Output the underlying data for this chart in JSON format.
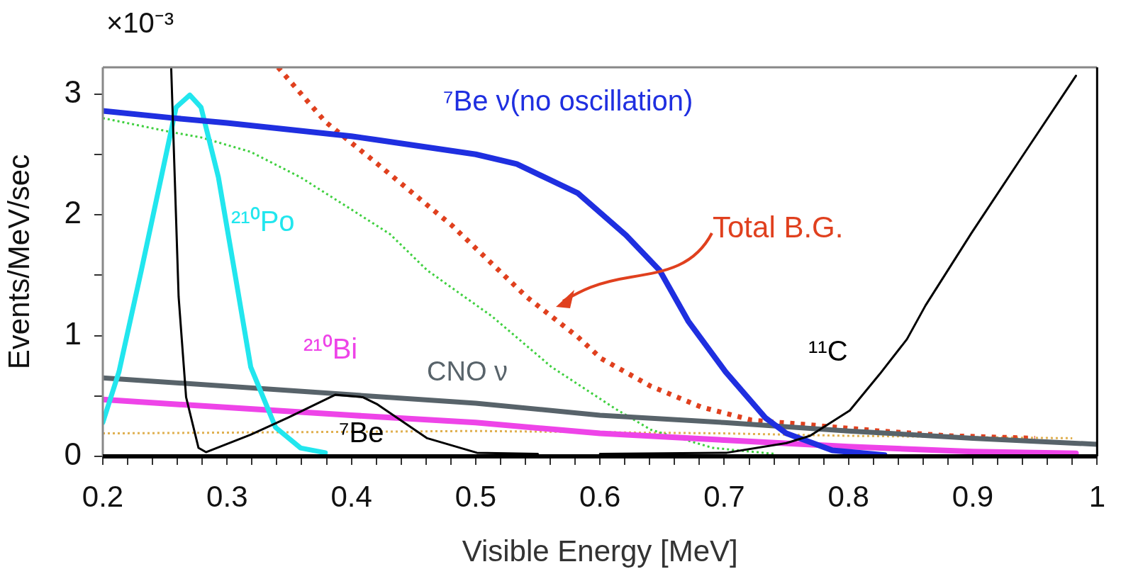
{
  "chart_data": {
    "type": "line",
    "xlabel": "Visible Energy [MeV]",
    "ylabel": "Events/MeV/sec",
    "annotations": [
      "×10⁻³"
    ],
    "xlim": [
      0.2,
      1.0
    ],
    "ylim": [
      0,
      3.22
    ],
    "xticks": [
      0.2,
      {
        "value": 0.22,
        "label": null
      },
      {
        "value": 0.24,
        "label": null
      },
      {
        "value": 0.26,
        "label": null
      },
      {
        "value": 0.28,
        "label": null
      },
      0.3,
      {
        "value": 0.32,
        "label": null
      },
      {
        "value": 0.34,
        "label": null
      },
      {
        "value": 0.36,
        "label": null
      },
      {
        "value": 0.38,
        "label": null
      },
      0.4,
      {
        "value": 0.42,
        "label": null
      },
      {
        "value": 0.44,
        "label": null
      },
      {
        "value": 0.46,
        "label": null
      },
      {
        "value": 0.48,
        "label": null
      },
      0.5,
      {
        "value": 0.52,
        "label": null
      },
      {
        "value": 0.54,
        "label": null
      },
      {
        "value": 0.56,
        "label": null
      },
      {
        "value": 0.58,
        "label": null
      },
      0.6,
      {
        "value": 0.62,
        "label": null
      },
      {
        "value": 0.64,
        "label": null
      },
      {
        "value": 0.66,
        "label": null
      },
      {
        "value": 0.68,
        "label": null
      },
      0.7,
      {
        "value": 0.72,
        "label": null
      },
      {
        "value": 0.74,
        "label": null
      },
      {
        "value": 0.76,
        "label": null
      },
      {
        "value": 0.78,
        "label": null
      },
      0.8,
      {
        "value": 0.82,
        "label": null
      },
      {
        "value": 0.84,
        "label": null
      },
      {
        "value": 0.86,
        "label": null
      },
      {
        "value": 0.88,
        "label": null
      },
      0.9,
      {
        "value": 0.92,
        "label": null
      },
      {
        "value": 0.94,
        "label": null
      },
      {
        "value": 0.96,
        "label": null
      },
      {
        "value": 0.98,
        "label": null
      },
      1
    ],
    "yticks": [
      0,
      {
        "value": 0.5,
        "label": null
      },
      1,
      {
        "value": 1.5,
        "label": null
      },
      2,
      {
        "value": 2.5,
        "label": null
      },
      3
    ],
    "marker": "none",
    "legend": false,
    "series": [
      {
        "name": "⁷Be ν(no oscillation)",
        "color": "#1f2fe0",
        "x": [
          0.2,
          0.257,
          0.3,
          0.4,
          0.42,
          0.5,
          0.533,
          0.582,
          0.621,
          0.648,
          0.671,
          0.701,
          0.733,
          0.75,
          0.787,
          0.829
        ],
        "values": [
          2.86,
          2.8,
          2.76,
          2.65,
          2.62,
          2.5,
          2.42,
          2.18,
          1.83,
          1.54,
          1.12,
          0.7,
          0.32,
          0.19,
          0.05,
          0.01
        ]
      },
      {
        "name": "²¹⁰Po",
        "color": "#22e6ee",
        "x": [
          0.2,
          0.213,
          0.231,
          0.247,
          0.259,
          0.27,
          0.279,
          0.293,
          0.307,
          0.319,
          0.339,
          0.359,
          0.379
        ],
        "values": [
          0.28,
          0.7,
          1.54,
          2.31,
          2.89,
          2.99,
          2.89,
          2.31,
          1.47,
          0.74,
          0.24,
          0.07,
          0.03
        ]
      },
      {
        "name": "²¹⁰Bi",
        "color": "#ee44e8",
        "x": [
          0.2,
          0.4,
          0.5,
          0.6,
          0.7,
          0.8,
          0.9,
          0.983
        ],
        "values": [
          0.47,
          0.34,
          0.28,
          0.19,
          0.135,
          0.08,
          0.04,
          0.025
        ]
      },
      {
        "name": "CNO ν",
        "color": "#58636a",
        "x": [
          0.2,
          0.4,
          0.5,
          0.6,
          0.7,
          0.8,
          0.9,
          1.0
        ],
        "values": [
          0.65,
          0.51,
          0.44,
          0.34,
          0.28,
          0.21,
          0.15,
          0.1
        ]
      },
      {
        "name": "⁷Be",
        "color": "#000000",
        "x": [
          0.255,
          0.261,
          0.267,
          0.277,
          0.283,
          0.319,
          0.349,
          0.387,
          0.409,
          0.421,
          0.461,
          0.501,
          0.55
        ],
        "values": [
          3.22,
          1.32,
          0.49,
          0.07,
          0.035,
          0.18,
          0.32,
          0.51,
          0.49,
          0.43,
          0.15,
          0.03,
          0.02
        ]
      },
      {
        "name": "¹¹C",
        "color": "#000000",
        "x": [
          0.6,
          0.702,
          0.75,
          0.769,
          0.801,
          0.825,
          0.847,
          0.862,
          0.899,
          0.937,
          0.983
        ],
        "values": [
          0.02,
          0.03,
          0.11,
          0.17,
          0.38,
          0.68,
          0.97,
          1.25,
          1.85,
          2.44,
          3.15
        ]
      },
      {
        "name": "Total B.G.",
        "color": "#e0401e",
        "line_style": "dotted",
        "x": [
          0.341,
          0.379,
          0.421,
          0.481,
          0.541,
          0.582,
          0.601,
          0.641,
          0.681,
          0.722,
          0.769,
          0.825,
          0.881,
          0.95
        ],
        "values": [
          3.22,
          2.77,
          2.42,
          1.91,
          1.32,
          0.99,
          0.81,
          0.58,
          0.41,
          0.3,
          0.26,
          0.21,
          0.17,
          0.15
        ]
      },
      {
        "color": "#40d040",
        "line_style": "dotted",
        "x": [
          0.2,
          0.257,
          0.279,
          0.319,
          0.359,
          0.399,
          0.431,
          0.461,
          0.513,
          0.561,
          0.613,
          0.641,
          0.691,
          0.741
        ],
        "values": [
          2.8,
          2.68,
          2.64,
          2.52,
          2.31,
          2.05,
          1.84,
          1.54,
          1.16,
          0.74,
          0.39,
          0.22,
          0.07,
          0.02
        ]
      },
      {
        "color": "#e0b050",
        "line_style": "dotted",
        "x": [
          0.2,
          0.5,
          0.7,
          0.8,
          0.98
        ],
        "values": [
          0.19,
          0.21,
          0.19,
          0.17,
          0.15
        ]
      }
    ]
  }
}
